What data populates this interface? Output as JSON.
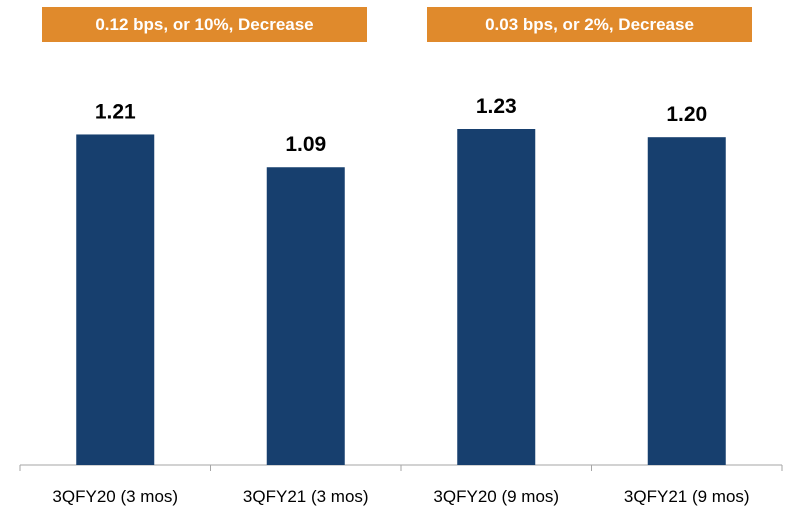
{
  "banners": {
    "left": "0.12 bps, or 10%, Decrease",
    "right": "0.03 bps, or 2%, Decrease"
  },
  "colors": {
    "bar": "#173f6e",
    "banner": "#e08a2c",
    "axis": "#a6a6a6"
  },
  "chart_data": {
    "type": "bar",
    "categories": [
      "3QFY20 (3 mos)",
      "3QFY21 (3 mos)",
      "3QFY20 (9 mos)",
      "3QFY21 (9 mos)"
    ],
    "values": [
      1.21,
      1.09,
      1.23,
      1.2
    ],
    "value_labels": [
      "1.21",
      "1.09",
      "1.23",
      "1.20"
    ],
    "title": "",
    "xlabel": "",
    "ylabel": "",
    "ylim": [
      0,
      1.23
    ],
    "grid": false,
    "legend": "none"
  }
}
